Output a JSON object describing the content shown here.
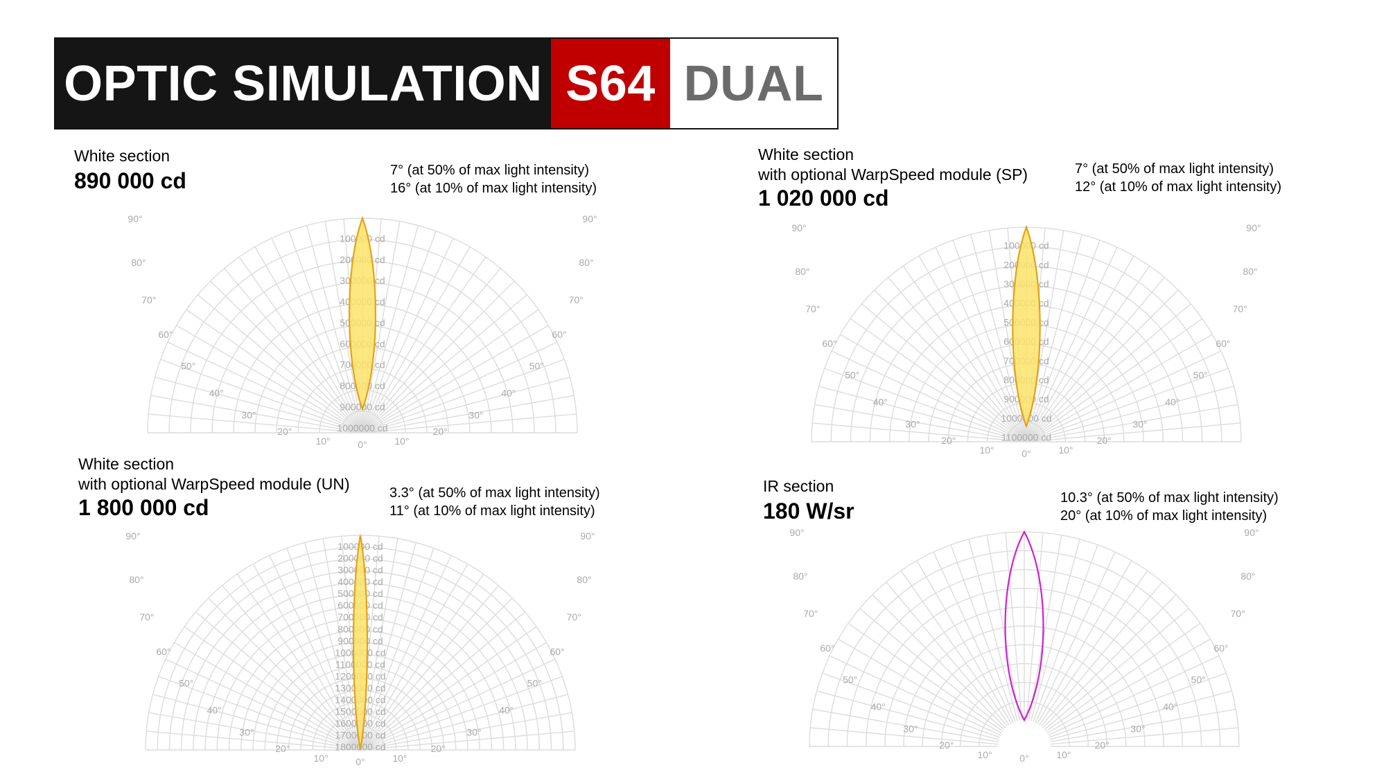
{
  "header": {
    "title": "OPTIC SIMULATION",
    "model": "S64",
    "variant": "DUAL"
  },
  "panels": [
    {
      "label_lines": [
        "White section"
      ],
      "value": "890 000 cd",
      "beam": [
        "7° (at 50% of max light intensity)",
        "16° (at 10% of max light intensity)"
      ]
    },
    {
      "label_lines": [
        "White section",
        "with optional WarpSpeed module (SP)"
      ],
      "value": "1 020 000 cd",
      "beam": [
        "7° (at 50% of max light intensity)",
        "12° (at 10% of max light intensity)"
      ]
    },
    {
      "label_lines": [
        "White section",
        "with optional WarpSpeed module (UN)"
      ],
      "value": "1 800 000 cd",
      "beam": [
        "3.3° (at 50% of max light intensity)",
        "11° (at 10% of max light intensity)"
      ]
    },
    {
      "label_lines": [
        "IR section"
      ],
      "value": "180 W/sr",
      "beam": [
        "10.3° (at 50% of max light intensity)",
        "20° (at 10% of max light intensity)"
      ]
    }
  ],
  "chart_data": [
    {
      "type": "polar",
      "angle_labels": [
        "0°",
        "10°",
        "20°",
        "30°",
        "40°",
        "50°",
        "60°",
        "70°",
        "80°",
        "90°"
      ],
      "radial_ticks": [
        "100000 cd",
        "200000 cd",
        "300000 cd",
        "400000 cd",
        "500000 cd",
        "600000 cd",
        "700000 cd",
        "800000 cd",
        "900000 cd",
        "1000000 cd"
      ],
      "radial_max": 1000000,
      "peak_intensity": 890000,
      "fwhm_deg": 7,
      "width10_deg": 16,
      "fill_color": "#fde36a",
      "stroke_color": "#e3a21a"
    },
    {
      "type": "polar",
      "angle_labels": [
        "0°",
        "10°",
        "20°",
        "30°",
        "40°",
        "50°",
        "60°",
        "70°",
        "80°",
        "90°"
      ],
      "radial_ticks": [
        "100000 cd",
        "200000 cd",
        "300000 cd",
        "400000 cd",
        "500000 cd",
        "600000 cd",
        "700000 cd",
        "800000 cd",
        "900000 cd",
        "1000000 cd",
        "1100000 cd"
      ],
      "radial_max": 1100000,
      "peak_intensity": 1020000,
      "fwhm_deg": 7,
      "width10_deg": 12,
      "fill_color": "#fde36a",
      "stroke_color": "#e3a21a"
    },
    {
      "type": "polar",
      "angle_labels": [
        "0°",
        "10°",
        "20°",
        "30°",
        "40°",
        "50°",
        "60°",
        "70°",
        "80°",
        "90°"
      ],
      "radial_ticks": [
        "100000 cd",
        "200000 cd",
        "300000 cd",
        "400000 cd",
        "500000 cd",
        "600000 cd",
        "700000 cd",
        "800000 cd",
        "900000 cd",
        "1000000 cd",
        "1100000 cd",
        "1200000 cd",
        "1300000 cd",
        "1400000 cd",
        "1500000 cd",
        "1600000 cd",
        "1700000 cd",
        "1800000 cd"
      ],
      "radial_max": 1800000,
      "peak_intensity": 1800000,
      "fwhm_deg": 3.3,
      "width10_deg": 11,
      "fill_color": "#fde36a",
      "stroke_color": "#e3a21a"
    },
    {
      "type": "polar",
      "angle_labels": [
        "0°",
        "10°",
        "20°",
        "30°",
        "40°",
        "50°",
        "60°",
        "70°",
        "80°",
        "90°"
      ],
      "radial_ticks": [],
      "radial_max": 180,
      "peak_intensity": 180,
      "fwhm_deg": 10.3,
      "width10_deg": 20,
      "fill_color": "none",
      "stroke_color": "#d020d0"
    }
  ]
}
